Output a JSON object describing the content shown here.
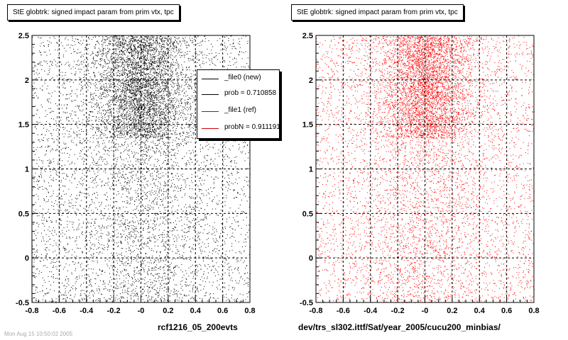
{
  "chart_data": [
    {
      "type": "scatter",
      "title": "StE globtrk: signed impact param from prim vtx, tpc",
      "caption": "rcf1216_05_200evts",
      "xlim": [
        -0.8,
        0.8
      ],
      "ylim": [
        -0.5,
        2.5
      ],
      "x_ticks": [
        "-0.8",
        "-0.6",
        "-0.4",
        "-0.2",
        "-0",
        "0.2",
        "0.4",
        "0.6",
        "0.8"
      ],
      "y_ticks": [
        "-0.5",
        "0",
        "0.5",
        "1",
        "1.5",
        "2",
        "2.5"
      ],
      "grid": true,
      "marker_color": "#000000",
      "legend": {
        "placement": "top-right",
        "entries": [
          {
            "label": "_file0 (new)",
            "color": "#000000"
          },
          {
            "label": "prob = 0.710858",
            "color": "#000000"
          },
          {
            "label": "_file1 (ref)",
            "color": "#cc0000"
          },
          {
            "label": "probN = 0.911191",
            "color": "#cc0000"
          }
        ]
      }
    },
    {
      "type": "scatter",
      "title": "StE globtrk: signed impact param from prim vtx, tpc",
      "caption": "dev/trs_sl302.ittf/Sat/year_2005/cucu200_minbias/",
      "xlim": [
        -0.8,
        0.8
      ],
      "ylim": [
        -0.5,
        2.5
      ],
      "x_ticks": [
        "-0.8",
        "-0.6",
        "-0.4",
        "-0.2",
        "-0",
        "0.2",
        "0.4",
        "0.6",
        "0.8"
      ],
      "y_ticks": [
        "-0.5",
        "0",
        "0.5",
        "1",
        "1.5",
        "2",
        "2.5"
      ],
      "grid": true,
      "marker_color": "#ff0000"
    }
  ],
  "footer_stamp": "Mon Aug 15 10:50:02 2005"
}
